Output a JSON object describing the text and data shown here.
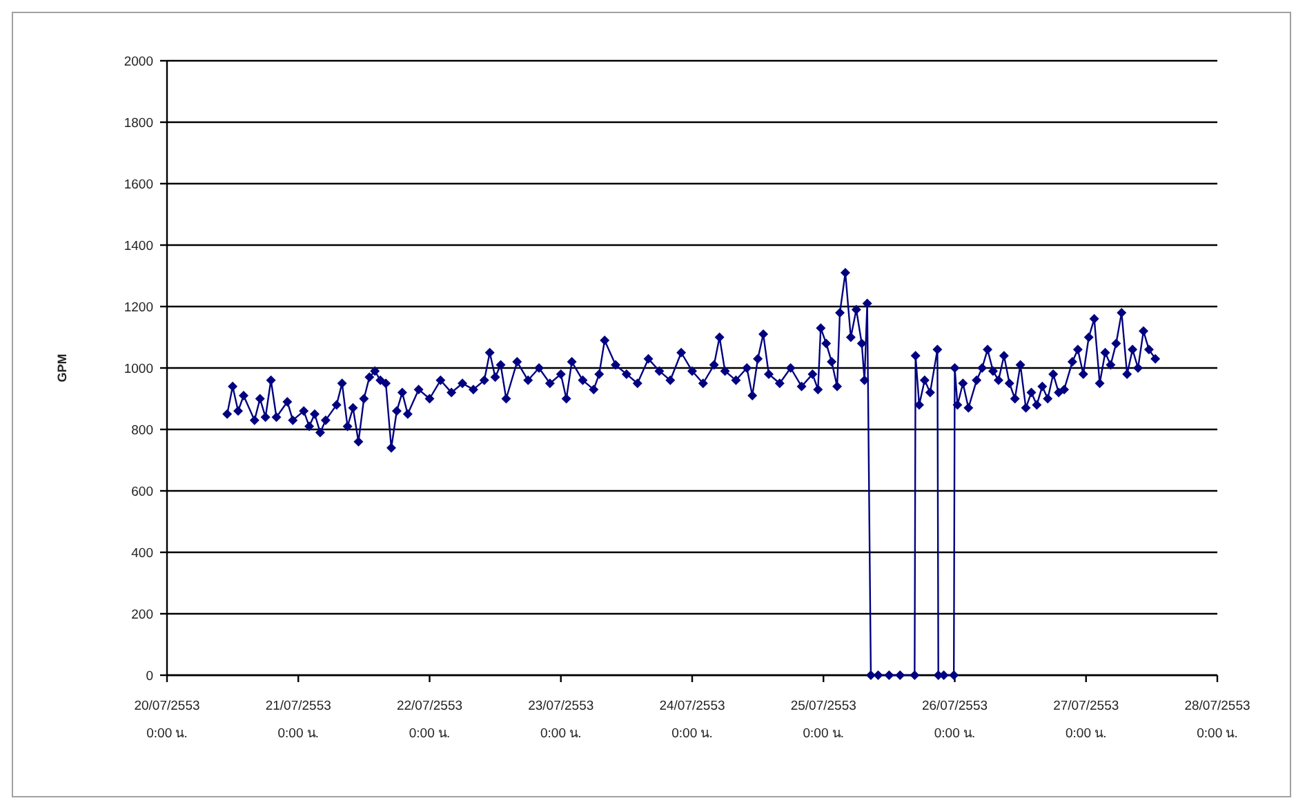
{
  "chart_data": {
    "type": "line",
    "ylabel": "GPM",
    "ylim": [
      0,
      2000
    ],
    "yticks": [
      0,
      200,
      400,
      600,
      800,
      1000,
      1200,
      1400,
      1600,
      1800,
      2000
    ],
    "xlim": [
      "2553-07-20",
      "2553-07-28"
    ],
    "xticks": [
      {
        "value": "2553-07-20",
        "label": "20/07/2553 0:00 น."
      },
      {
        "value": "2553-07-21",
        "label": "21/07/2553 0:00 น."
      },
      {
        "value": "2553-07-22",
        "label": "22/07/2553 0:00 น."
      },
      {
        "value": "2553-07-23",
        "label": "23/07/2553 0:00 น."
      },
      {
        "value": "2553-07-24",
        "label": "24/07/2553 0:00 น."
      },
      {
        "value": "2553-07-25",
        "label": "25/07/2553 0:00 น."
      },
      {
        "value": "2553-07-26",
        "label": "26/07/2553 0:00 น."
      },
      {
        "value": "2553-07-27",
        "label": "27/07/2553 0:00 น."
      },
      {
        "value": "2553-07-28",
        "label": "28/07/2553 0:00 น."
      }
    ],
    "grid": "y",
    "marker": "diamond",
    "line_style": "solid",
    "series": [
      {
        "color": "#000080",
        "x": [
          "2553-07-20T11:00",
          "2553-07-20T12:00",
          "2553-07-20T13:00",
          "2553-07-20T14:00",
          "2553-07-20T16:00",
          "2553-07-20T17:00",
          "2553-07-20T18:00",
          "2553-07-20T19:00",
          "2553-07-20T20:00",
          "2553-07-20T22:00",
          "2553-07-20T23:00",
          "2553-07-21T01:00",
          "2553-07-21T02:00",
          "2553-07-21T03:00",
          "2553-07-21T04:00",
          "2553-07-21T05:00",
          "2553-07-21T07:00",
          "2553-07-21T08:00",
          "2553-07-21T09:00",
          "2553-07-21T10:00",
          "2553-07-21T11:00",
          "2553-07-21T12:00",
          "2553-07-21T13:00",
          "2553-07-21T14:00",
          "2553-07-21T15:00",
          "2553-07-21T16:00",
          "2553-07-21T17:00",
          "2553-07-21T18:00",
          "2553-07-21T19:00",
          "2553-07-21T20:00",
          "2553-07-21T22:00",
          "2553-07-22T00:00",
          "2553-07-22T02:00",
          "2553-07-22T04:00",
          "2553-07-22T06:00",
          "2553-07-22T08:00",
          "2553-07-22T10:00",
          "2553-07-22T11:00",
          "2553-07-22T12:00",
          "2553-07-22T13:00",
          "2553-07-22T14:00",
          "2553-07-22T16:00",
          "2553-07-22T18:00",
          "2553-07-22T20:00",
          "2553-07-22T22:00",
          "2553-07-23T00:00",
          "2553-07-23T01:00",
          "2553-07-23T02:00",
          "2553-07-23T04:00",
          "2553-07-23T06:00",
          "2553-07-23T07:00",
          "2553-07-23T08:00",
          "2553-07-23T10:00",
          "2553-07-23T12:00",
          "2553-07-23T14:00",
          "2553-07-23T16:00",
          "2553-07-23T18:00",
          "2553-07-23T20:00",
          "2553-07-23T22:00",
          "2553-07-24T00:00",
          "2553-07-24T02:00",
          "2553-07-24T04:00",
          "2553-07-24T05:00",
          "2553-07-24T06:00",
          "2553-07-24T08:00",
          "2553-07-24T10:00",
          "2553-07-24T11:00",
          "2553-07-24T12:00",
          "2553-07-24T13:00",
          "2553-07-24T14:00",
          "2553-07-24T16:00",
          "2553-07-24T18:00",
          "2553-07-24T20:00",
          "2553-07-24T22:00",
          "2553-07-24T23:00",
          "2553-07-24T23:30",
          "2553-07-25T00:30",
          "2553-07-25T01:30",
          "2553-07-25T02:30",
          "2553-07-25T03:00",
          "2553-07-25T04:00",
          "2553-07-25T05:00",
          "2553-07-25T06:00",
          "2553-07-25T07:00",
          "2553-07-25T07:30",
          "2553-07-25T08:00",
          "2553-07-25T08:40",
          "2553-07-25T10:00",
          "2553-07-25T12:00",
          "2553-07-25T14:00",
          "2553-07-25T16:40",
          "2553-07-25T16:50",
          "2553-07-25T17:30",
          "2553-07-25T18:30",
          "2553-07-25T19:30",
          "2553-07-25T20:50",
          "2553-07-25T21:00",
          "2553-07-25T22:00",
          "2553-07-25T23:50",
          "2553-07-26T00:00",
          "2553-07-26T00:30",
          "2553-07-26T01:30",
          "2553-07-26T02:30",
          "2553-07-26T04:00",
          "2553-07-26T05:00",
          "2553-07-26T06:00",
          "2553-07-26T07:00",
          "2553-07-26T08:00",
          "2553-07-26T09:00",
          "2553-07-26T10:00",
          "2553-07-26T11:00",
          "2553-07-26T12:00",
          "2553-07-26T13:00",
          "2553-07-26T14:00",
          "2553-07-26T15:00",
          "2553-07-26T16:00",
          "2553-07-26T17:00",
          "2553-07-26T18:00",
          "2553-07-26T19:00",
          "2553-07-26T20:00",
          "2553-07-26T21:30",
          "2553-07-26T22:30",
          "2553-07-26T23:30",
          "2553-07-27T00:30",
          "2553-07-27T01:30",
          "2553-07-27T02:30",
          "2553-07-27T03:30",
          "2553-07-27T04:30",
          "2553-07-27T05:30",
          "2553-07-27T06:30",
          "2553-07-27T07:30",
          "2553-07-27T08:30",
          "2553-07-27T09:30",
          "2553-07-27T10:30",
          "2553-07-27T11:30",
          "2553-07-27T12:40"
        ],
        "values": [
          850,
          940,
          860,
          910,
          830,
          900,
          840,
          960,
          840,
          890,
          830,
          860,
          810,
          850,
          790,
          830,
          880,
          950,
          810,
          870,
          760,
          900,
          970,
          990,
          960,
          950,
          740,
          860,
          920,
          850,
          930,
          900,
          960,
          920,
          950,
          930,
          960,
          1050,
          970,
          1010,
          900,
          1020,
          960,
          1000,
          950,
          980,
          900,
          1020,
          960,
          930,
          980,
          1090,
          1010,
          980,
          950,
          1030,
          990,
          960,
          1050,
          990,
          950,
          1010,
          1100,
          990,
          960,
          1000,
          910,
          1030,
          1110,
          980,
          950,
          1000,
          940,
          980,
          930,
          1130,
          1080,
          1020,
          940,
          1180,
          1310,
          1100,
          1190,
          1080,
          960,
          1210,
          0,
          0,
          0,
          0,
          0,
          1040,
          880,
          960,
          920,
          1060,
          0,
          0,
          0,
          1000,
          880,
          950,
          870,
          960,
          1000,
          1060,
          990,
          960,
          1040,
          950,
          900,
          1010,
          870,
          920,
          880,
          940,
          900,
          980,
          920,
          930,
          1020,
          1060,
          980,
          1100,
          1160,
          950,
          1050,
          1010,
          1080,
          1180,
          980,
          1060,
          1000,
          1120,
          1060,
          1030
        ]
      }
    ]
  }
}
